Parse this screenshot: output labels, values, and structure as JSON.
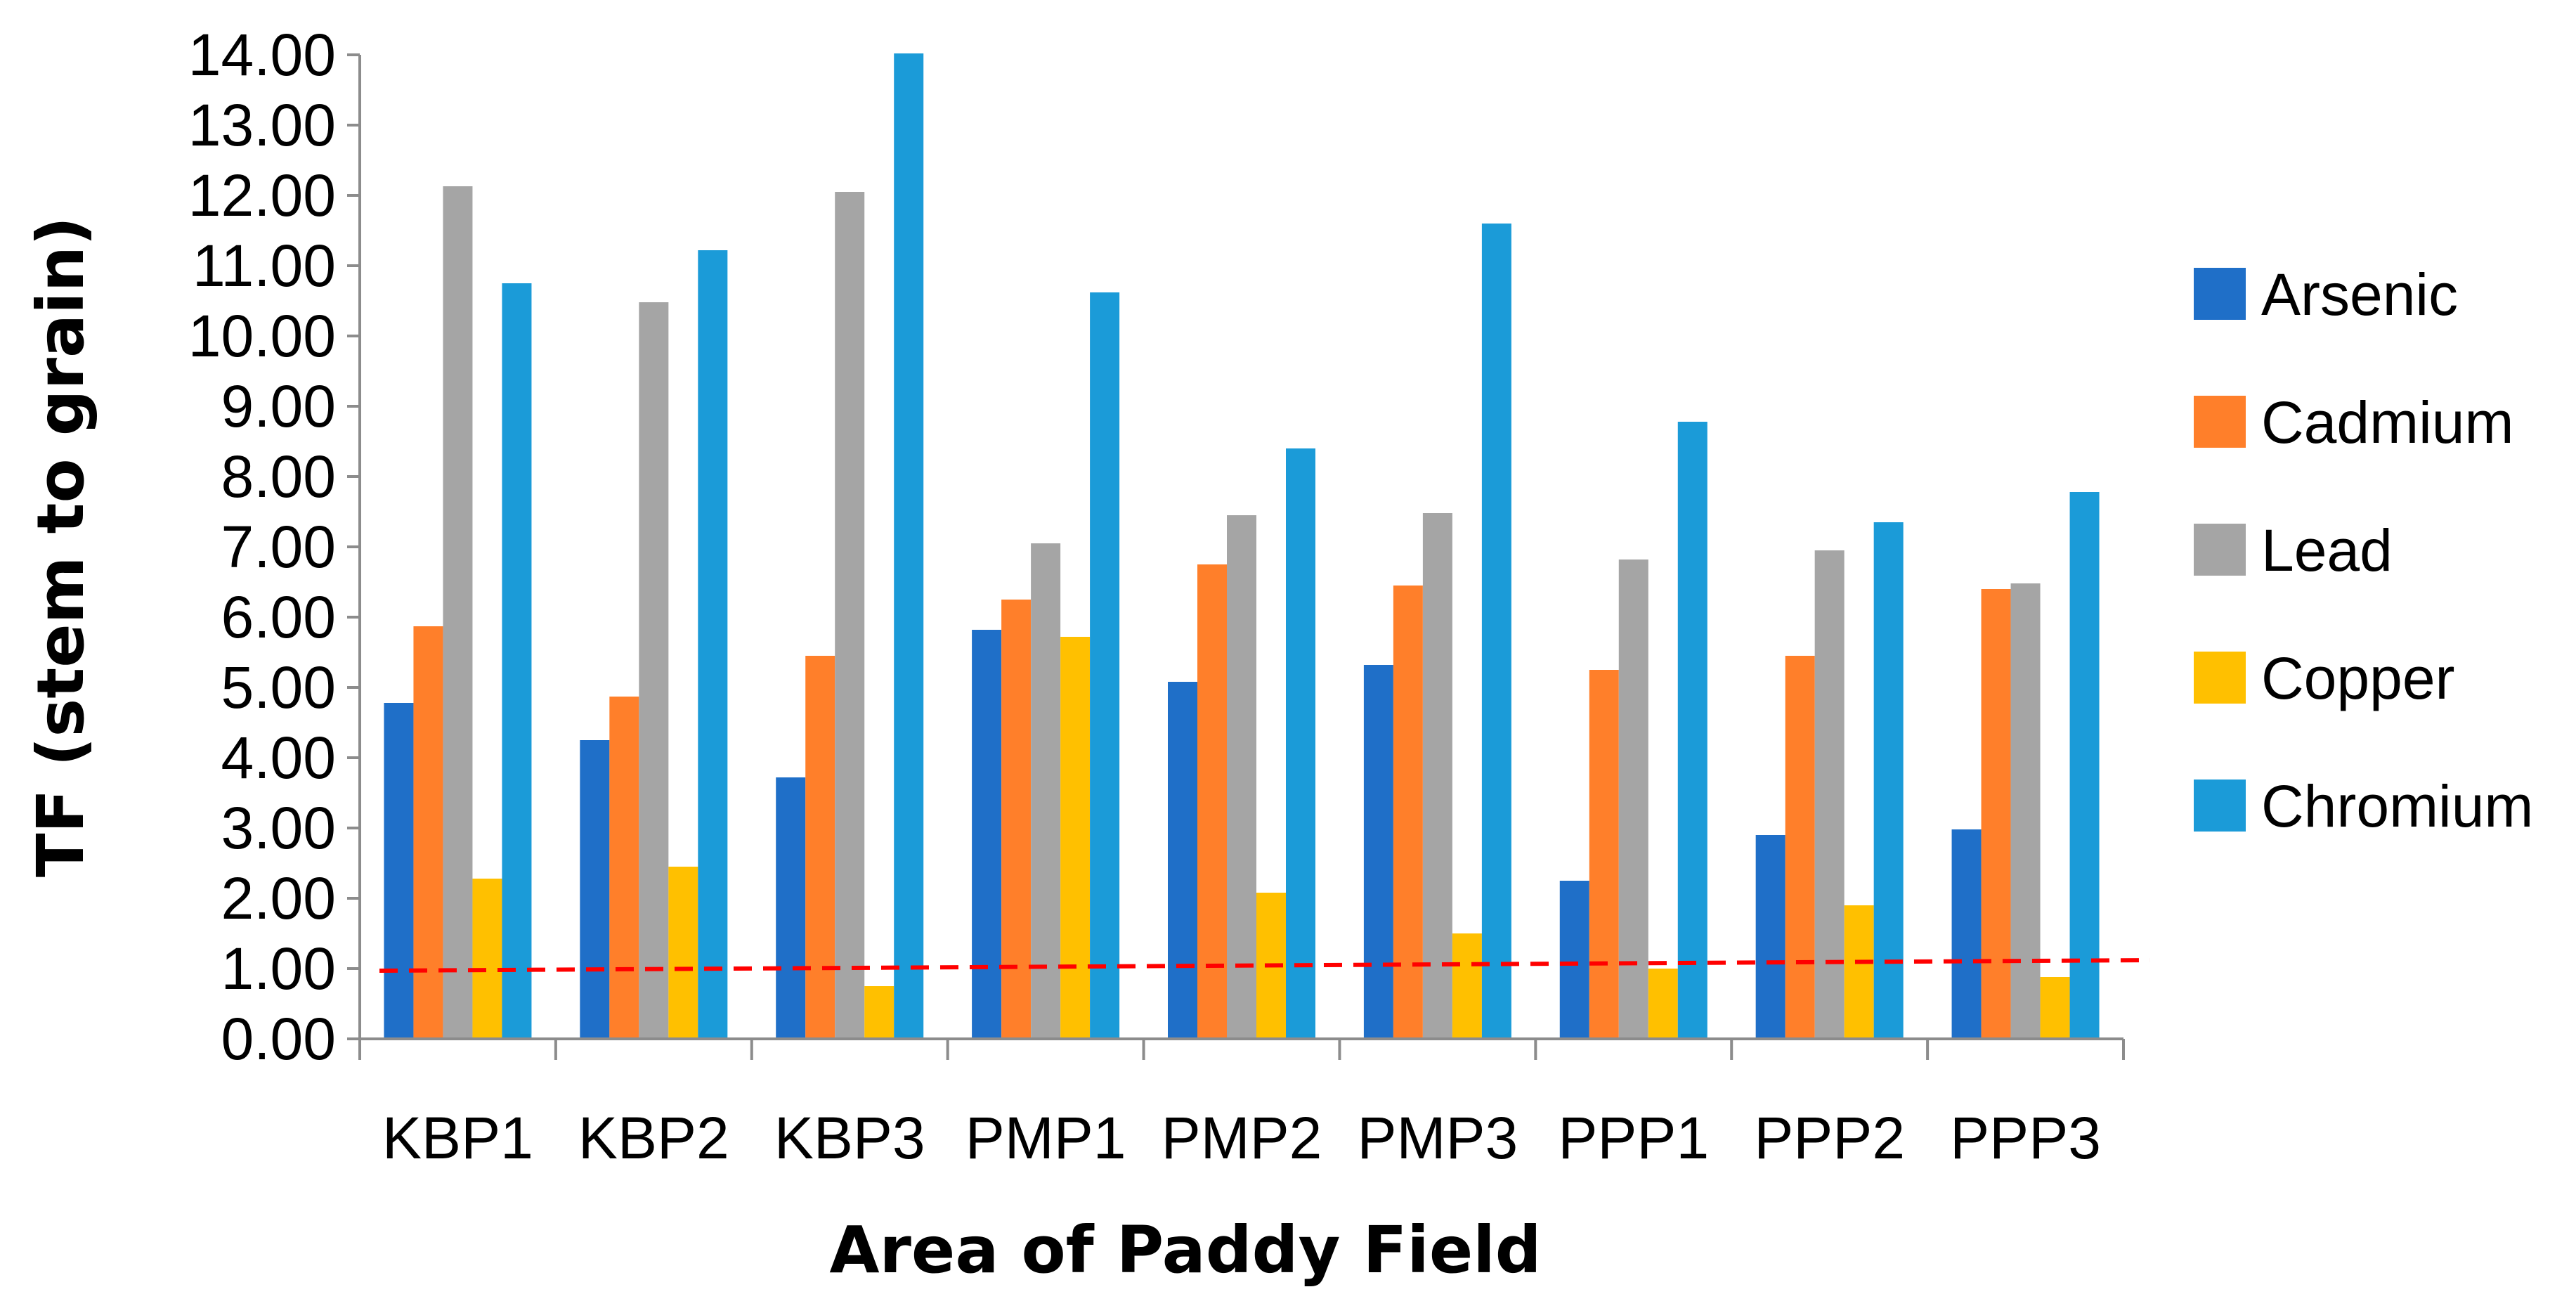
{
  "chart_data": {
    "type": "bar",
    "title": "",
    "xlabel": "Area of Paddy Field",
    "ylabel": "TF (stem to grain)",
    "ylim": [
      0,
      14
    ],
    "ytick_step": 1,
    "ytick_labels": [
      "0.00",
      "1.00",
      "2.00",
      "3.00",
      "4.00",
      "5.00",
      "6.00",
      "7.00",
      "8.00",
      "9.00",
      "10.00",
      "11.00",
      "12.00",
      "13.00",
      "14.00"
    ],
    "categories": [
      "KBP1",
      "KBP2",
      "KBP3",
      "PMP1",
      "PMP2",
      "PMP3",
      "PPP1",
      "PPP2",
      "PPP3"
    ],
    "series": [
      {
        "name": "Arsenic",
        "color": "#1F6FC8",
        "values": [
          4.78,
          4.25,
          3.72,
          5.82,
          5.08,
          5.32,
          2.25,
          2.9,
          2.98
        ]
      },
      {
        "name": "Cadmium",
        "color": "#FF7F2A",
        "values": [
          5.87,
          4.87,
          5.45,
          6.25,
          6.75,
          6.45,
          5.25,
          5.45,
          6.4
        ]
      },
      {
        "name": "Lead",
        "color": "#A5A5A5",
        "values": [
          12.13,
          10.48,
          12.05,
          7.05,
          7.45,
          7.48,
          6.82,
          6.95,
          6.48
        ]
      },
      {
        "name": "Copper",
        "color": "#FFC000",
        "values": [
          2.28,
          2.45,
          0.75,
          5.72,
          2.08,
          1.5,
          1.0,
          1.9,
          0.88
        ]
      },
      {
        "name": "Chromium",
        "color": "#1B9BD8",
        "values": [
          10.75,
          11.22,
          14.02,
          10.62,
          8.4,
          11.6,
          8.78,
          7.35,
          7.78
        ]
      }
    ],
    "threshold_line": {
      "style": "dashed",
      "color": "#FF0000",
      "start": 0.97,
      "end": 1.12
    },
    "legend": "right",
    "grid": false
  }
}
